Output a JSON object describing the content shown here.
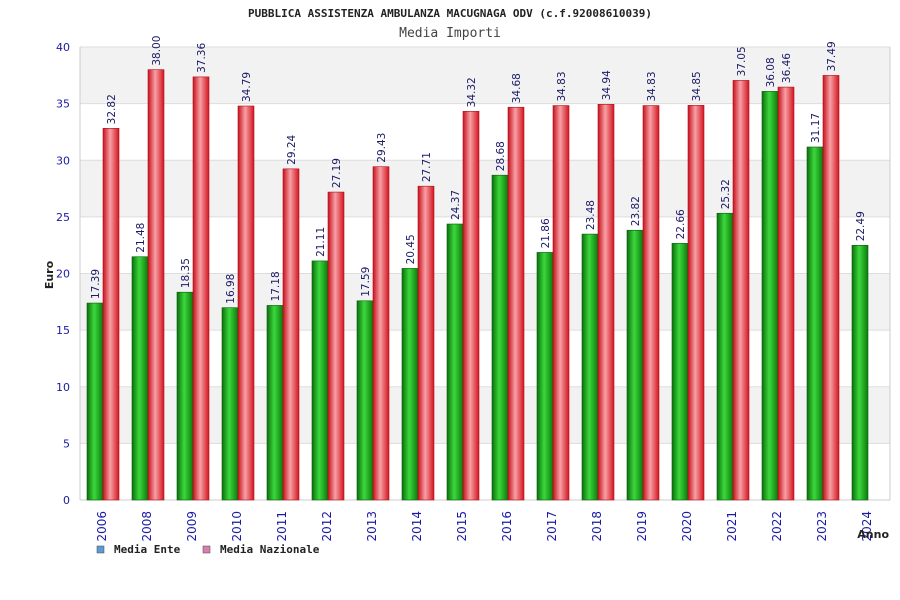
{
  "chart_data": {
    "type": "bar",
    "title": "PUBBLICA ASSISTENZA AMBULANZA MACUGNAGA ODV (c.f.92008610039)",
    "subtitle": "Media Importi",
    "xlabel": "Anno",
    "ylabel": "Euro",
    "ylim": [
      0,
      40
    ],
    "yticks": [
      0,
      5,
      10,
      15,
      20,
      25,
      30,
      35,
      40
    ],
    "grid": true,
    "legend_position": "bottom-left",
    "categories": [
      "2006",
      "2008",
      "2009",
      "2010",
      "2011",
      "2012",
      "2013",
      "2014",
      "2015",
      "2016",
      "2017",
      "2018",
      "2019",
      "2020",
      "2021",
      "2022",
      "2023",
      "2024"
    ],
    "series": [
      {
        "name": "Media Ente",
        "color": "#1a9e1a",
        "legend_color": "#5b9bd5",
        "values": [
          17.39,
          21.48,
          18.35,
          16.98,
          17.18,
          21.11,
          17.59,
          20.45,
          24.37,
          28.68,
          21.86,
          23.48,
          23.82,
          22.66,
          25.32,
          36.08,
          31.17,
          22.49
        ]
      },
      {
        "name": "Media Nazionale",
        "color": "#e8303a",
        "legend_color": "#d97fae",
        "values": [
          32.82,
          38.0,
          37.36,
          34.79,
          29.24,
          27.19,
          29.43,
          27.71,
          34.32,
          34.68,
          34.83,
          34.94,
          34.83,
          34.85,
          37.05,
          36.46,
          37.49,
          null
        ]
      }
    ],
    "data_labels": [
      [
        "17.39",
        "21.48",
        "18.35",
        "16.98",
        "17.18",
        "21.11",
        "17.59",
        "20.45",
        "24.37",
        "28.68",
        "21.86",
        "23.48",
        "23.82",
        "22.66",
        "25.32",
        "36.08",
        "31.17",
        "22.49"
      ],
      [
        "32.82",
        "38.00",
        "37.36",
        "34.79",
        "29.24",
        "27.19",
        "29.43",
        "27.71",
        "34.32",
        "34.68",
        "34.83",
        "34.94",
        "34.83",
        "34.85",
        "37.05",
        "36.46",
        "37.49",
        ""
      ]
    ]
  }
}
